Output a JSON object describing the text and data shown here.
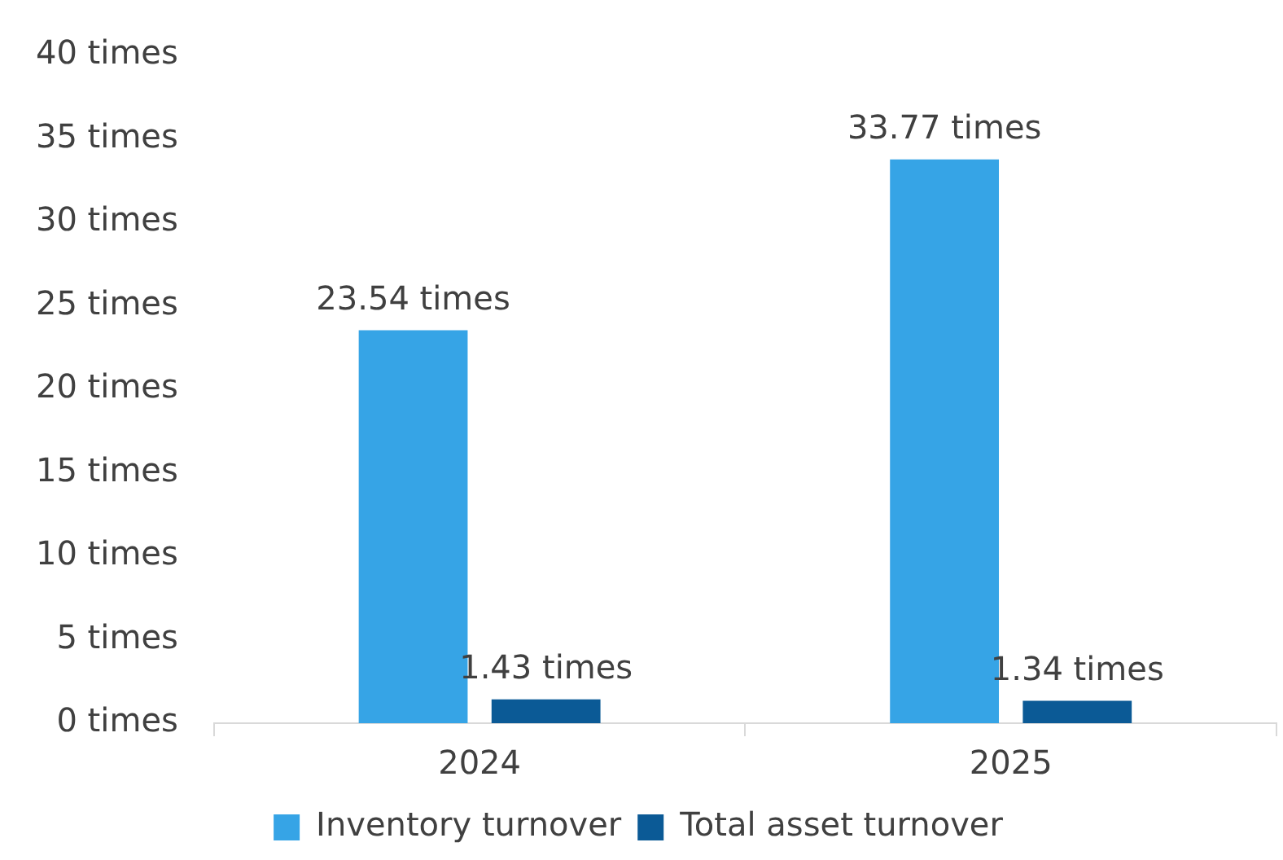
{
  "chart_data": {
    "type": "bar",
    "categories": [
      "2024",
      "2025"
    ],
    "series": [
      {
        "name": "Inventory turnover",
        "color": "#36a4e6",
        "values": [
          23.54,
          33.77
        ],
        "value_labels": [
          "23.54 times",
          "33.77 times"
        ]
      },
      {
        "name": "Total asset turnover",
        "color": "#0b5a96",
        "values": [
          1.43,
          1.34
        ],
        "value_labels": [
          "1.43 times",
          "1.34 times"
        ]
      }
    ],
    "ylim": [
      0,
      40
    ],
    "yticks": [
      {
        "value": 0,
        "label": "0 times"
      },
      {
        "value": 5,
        "label": "5 times"
      },
      {
        "value": 10,
        "label": "10 times"
      },
      {
        "value": 15,
        "label": "15 times"
      },
      {
        "value": 20,
        "label": "20 times"
      },
      {
        "value": 25,
        "label": "25 times"
      },
      {
        "value": 30,
        "label": "30 times"
      },
      {
        "value": 35,
        "label": "35 times"
      },
      {
        "value": 40,
        "label": "40 times"
      }
    ],
    "legend": "bottom"
  }
}
